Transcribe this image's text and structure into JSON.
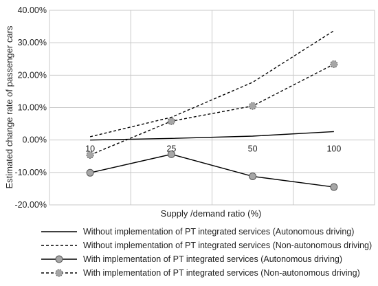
{
  "chart_data": {
    "type": "line",
    "categories": [
      "10",
      "25",
      "50",
      "100"
    ],
    "xlabel": "Supply /demand ratio (%)",
    "ylabel": "Estimated change rate of passenger cars",
    "ylim": [
      -0.2,
      0.4
    ],
    "yticks": [
      "-20.00%",
      "-10.00%",
      "0.00%",
      "10.00%",
      "20.00%",
      "30.00%",
      "40.00%"
    ],
    "grid": true,
    "legend_position": "bottom",
    "series": [
      {
        "name": "Without implementation of PT integrated services (Autonomous driving)",
        "values": [
          0.0,
          0.005,
          0.012,
          0.026
        ],
        "line": "solid",
        "marker": "none",
        "color": "#000000"
      },
      {
        "name": "Without implementation of PT integrated services (Non-autonomous driving)",
        "values": [
          0.01,
          0.07,
          0.178,
          0.337
        ],
        "line": "dashed",
        "marker": "none",
        "color": "#000000"
      },
      {
        "name": "With implementation of PT integrated services (Autonomous driving)",
        "values": [
          -0.101,
          -0.044,
          -0.112,
          -0.145
        ],
        "line": "solid",
        "marker": "circle",
        "color": "#000000"
      },
      {
        "name": "With implementation of PT integrated services (Non-autonomous driving)",
        "values": [
          -0.046,
          0.058,
          0.105,
          0.234
        ],
        "line": "dashed",
        "marker": "circle",
        "color": "#000000"
      }
    ],
    "marker_fill": "#a6a6a6",
    "grid_color": "#c8c8c8"
  }
}
